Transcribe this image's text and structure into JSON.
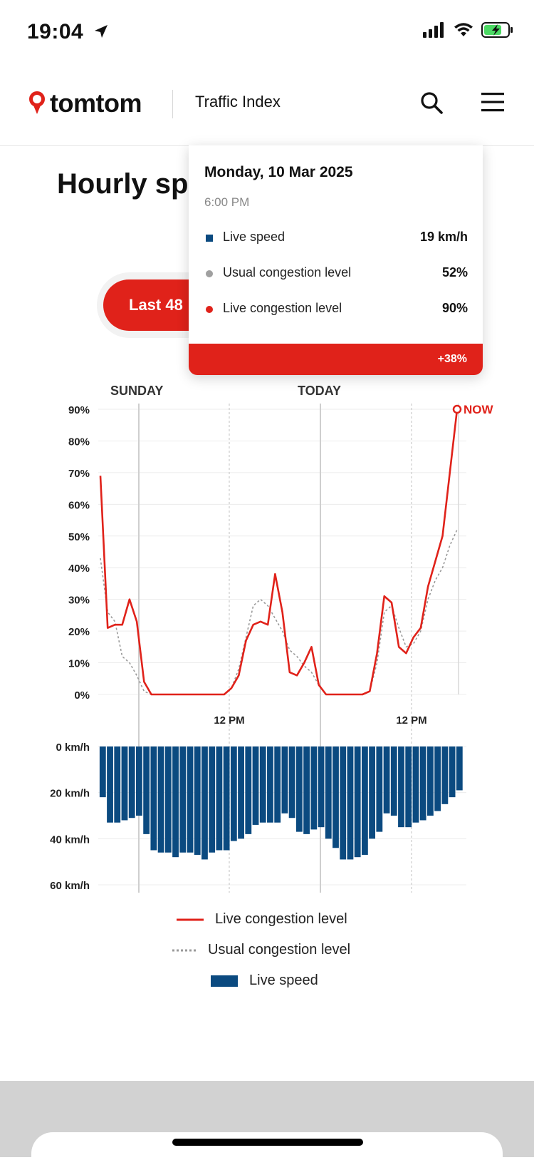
{
  "status_bar": {
    "time": "19:04"
  },
  "header": {
    "logo_text": "tomtom",
    "title": "Traffic Index"
  },
  "page": {
    "title": "Hourly sp"
  },
  "period_toggle": {
    "active_label": "Last 48"
  },
  "tooltip": {
    "date": "Monday, 10 Mar 2025",
    "time": "6:00 PM",
    "rows": [
      {
        "label": "Live speed",
        "value": "19 km/h",
        "color": "#0b4a80"
      },
      {
        "label": "Usual congestion level",
        "value": "52%",
        "color": "#a0a0a0"
      },
      {
        "label": "Live congestion level",
        "value": "90%",
        "color": "#e0221a"
      }
    ],
    "diff": "+38%"
  },
  "colors": {
    "accent": "#e0221a",
    "speed_bar": "#0b4a80",
    "usual_line": "#9a9a9a"
  },
  "chart_data": {
    "type": "line",
    "day_labels": [
      "SUNDAY",
      "TODAY"
    ],
    "now_label": "NOW",
    "x_tick_labels": [
      "12 PM",
      "12 PM"
    ],
    "congestion_axis": {
      "ticks": [
        "0%",
        "10%",
        "20%",
        "30%",
        "40%",
        "50%",
        "60%",
        "70%",
        "80%",
        "90%"
      ],
      "ylim": [
        0,
        90
      ]
    },
    "speed_axis": {
      "ticks": [
        "0 km/h",
        "20 km/h",
        "40 km/h",
        "60 km/h"
      ],
      "ylim": [
        0,
        60
      ]
    },
    "series": [
      {
        "name": "Live congestion level",
        "values": [
          69,
          21,
          22,
          22,
          30,
          23,
          4,
          0,
          0,
          0,
          0,
          0,
          0,
          0,
          0,
          0,
          0,
          0,
          2,
          6,
          17,
          22,
          23,
          22,
          38,
          26,
          7,
          6,
          10,
          15,
          3,
          0,
          0,
          0,
          0,
          0,
          0,
          1,
          13,
          31,
          29,
          15,
          13,
          18,
          21,
          34,
          42,
          50,
          70,
          90
        ]
      },
      {
        "name": "Usual congestion level",
        "values": [
          43,
          26,
          23,
          12,
          10,
          6,
          1,
          0,
          0,
          0,
          0,
          0,
          0,
          0,
          0,
          0,
          0,
          0,
          2,
          8,
          18,
          28,
          30,
          28,
          24,
          20,
          14,
          12,
          9,
          7,
          3,
          0,
          0,
          0,
          0,
          0,
          0,
          1,
          10,
          26,
          28,
          21,
          15,
          16,
          20,
          30,
          36,
          40,
          47,
          52
        ]
      },
      {
        "name": "Live speed",
        "unit": "km/h",
        "values": [
          22,
          33,
          33,
          32,
          31,
          30,
          38,
          45,
          46,
          46,
          48,
          46,
          46,
          47,
          49,
          46,
          45,
          45,
          41,
          40,
          38,
          34,
          33,
          33,
          33,
          29,
          31,
          37,
          38,
          36,
          35,
          40,
          44,
          49,
          49,
          48,
          47,
          40,
          37,
          29,
          30,
          35,
          35,
          33,
          32,
          30,
          28,
          25,
          22,
          19
        ]
      }
    ],
    "legend": [
      "Live congestion level",
      "Usual congestion level",
      "Live speed"
    ],
    "legend_position": "bottom",
    "grid": true
  }
}
